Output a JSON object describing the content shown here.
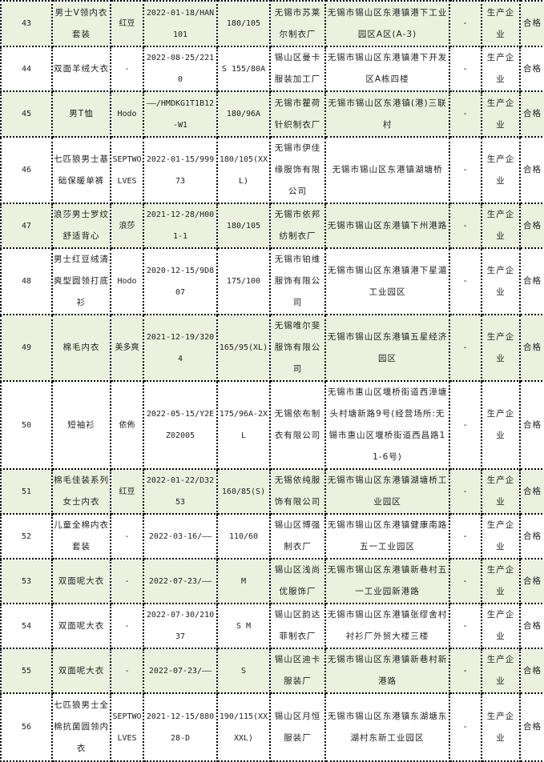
{
  "colors": {
    "shaded_row": "#ebf1de",
    "border": "#000000"
  },
  "rows": [
    {
      "no": "43",
      "product": "男士V领内衣套装",
      "brand": "红豆",
      "batch": "2022-01-18/HAN101",
      "spec": "180/105",
      "producer": "无锡市苏莱尔制衣厂",
      "address": "无锡市锡山区东港镇港下工业园区A区(A-3)",
      "dash": "-",
      "type": "生产企业",
      "result": "合格"
    },
    {
      "no": "44",
      "product": "双面羊绒大衣",
      "brand": "-",
      "batch": "2022-08-25/2210",
      "spec": "S 155/80A",
      "producer": "锡山区曼卡服装加工厂",
      "address": "无锡市锡山区东港镇港下开发区A栋四楼",
      "dash": "-",
      "type": "生产企业",
      "result": "合格"
    },
    {
      "no": "45",
      "product": "男T恤",
      "brand": "Hodo",
      "batch": "——/HMDKG1T1B12-W1",
      "spec": "180/96A",
      "producer": "无锡市瞿荷针织制衣厂",
      "address": "无锡市锡山区东港镇(港)三联村",
      "dash": "-",
      "type": "生产企业",
      "result": "合格"
    },
    {
      "no": "46",
      "product": "七匹狼男士基础保暖单裤",
      "brand": "SEPTWOLVES",
      "batch": "2022-01-15/99973",
      "spec": "180/105(XXL)",
      "producer": "无锡市伊佳缘服饰有限公司",
      "address": "无锡市锡山区东港镇湖塘桥",
      "dash": "-",
      "type": "生产企业",
      "result": "合格"
    },
    {
      "no": "47",
      "product": "浪莎男士罗纹舒适背心",
      "brand": "浪莎",
      "batch": "2021-12-28/H001-1",
      "spec": "180/105",
      "producer": "无锡市依邦纺制衣厂",
      "address": "无锡市锡山区东港镇下州港路",
      "dash": "-",
      "type": "生产企业",
      "result": "合格"
    },
    {
      "no": "48",
      "product": "男士红豆绒清爽型圆领打底衫",
      "brand": "Hodo",
      "batch": "2020-12-15/9D807",
      "spec": "175/100",
      "producer": "无锡市铂维服饰有限公司",
      "address": "无锡市锡山区东港镇港下星湄工业园区",
      "dash": "-",
      "type": "生产企业",
      "result": "合格"
    },
    {
      "no": "49",
      "product": "棉毛内衣",
      "brand": "美多爽",
      "batch": "2021-12-19/3204",
      "spec": "165/95(XL)",
      "producer": "无锡唯尔斐服饰有限公司",
      "address": "无锡市锡山区东港镇五星经济园区",
      "dash": "-",
      "type": "生产企业",
      "result": "合格"
    },
    {
      "no": "50",
      "product": "短袖衫",
      "brand": "依佈",
      "batch": "2022-05-15/Y2EZ02005",
      "spec": "175/96A-2XL",
      "producer": "无锡依布制衣有限公司",
      "address": "无锡市惠山区堰桥街道西漳塘头村塘新路9号(经营场所:无锡市惠山区堰桥街道西昌路11-6号)",
      "dash": "-",
      "type": "生产企业",
      "result": "合格"
    },
    {
      "no": "51",
      "product": "棉毛佳装系列女士内衣",
      "brand": "红豆",
      "batch": "2022-01-22/D3253",
      "spec": "160/85(S)",
      "producer": "无锡依纯服饰有限公司",
      "address": "无锡市锡山区东港镇湖塘桥工业园区",
      "dash": "-",
      "type": "生产企业",
      "result": "合格"
    },
    {
      "no": "52",
      "product": "儿童全棉内衣套装",
      "brand": "-",
      "batch": "2022-03-16/——",
      "spec": "110/60",
      "producer": "锡山区博强制衣厂",
      "address": "无锡市锡山区东港镇健康南路五一工业园区",
      "dash": "-",
      "type": "生产企业",
      "result": "合格"
    },
    {
      "no": "53",
      "product": "双面呢大衣",
      "brand": "-",
      "batch": "2022-07-23/——",
      "spec": "M",
      "producer": "锡山区浅尚优服饰厂",
      "address": "无锡市锡山区东港镇新巷村五一工业园新港路",
      "dash": "-",
      "type": "生产企业",
      "result": "合格"
    },
    {
      "no": "54",
      "product": "双面呢大衣",
      "brand": "-",
      "batch": "2022-07-30/21037",
      "spec": "S M",
      "producer": "锡山区韵达菲制衣厂",
      "address": "无锡市锡山区东港镇张缪舍村衬衫厂外贸大楼三楼",
      "dash": "-",
      "type": "生产企业",
      "result": "合格"
    },
    {
      "no": "55",
      "product": "双面呢大衣",
      "brand": "-",
      "batch": "2022-07-23/——",
      "spec": "S",
      "producer": "锡山区迪卡服装厂",
      "address": "无锡市锡山区东港镇新巷村新港路",
      "dash": "-",
      "type": "生产企业",
      "result": "合格"
    },
    {
      "no": "56",
      "product": "七匹狼男士全棉抗菌圆领内衣",
      "brand": "SEPTWOLVES",
      "batch": "2021-12-15/88028-D",
      "spec": "190/115(XXXXL)",
      "producer": "锡山区月恒服装厂",
      "address": "无锡市锡山区东港镇东湖塘东湖村东新工业园区",
      "dash": "-",
      "type": "生产企业",
      "result": "合格"
    }
  ]
}
